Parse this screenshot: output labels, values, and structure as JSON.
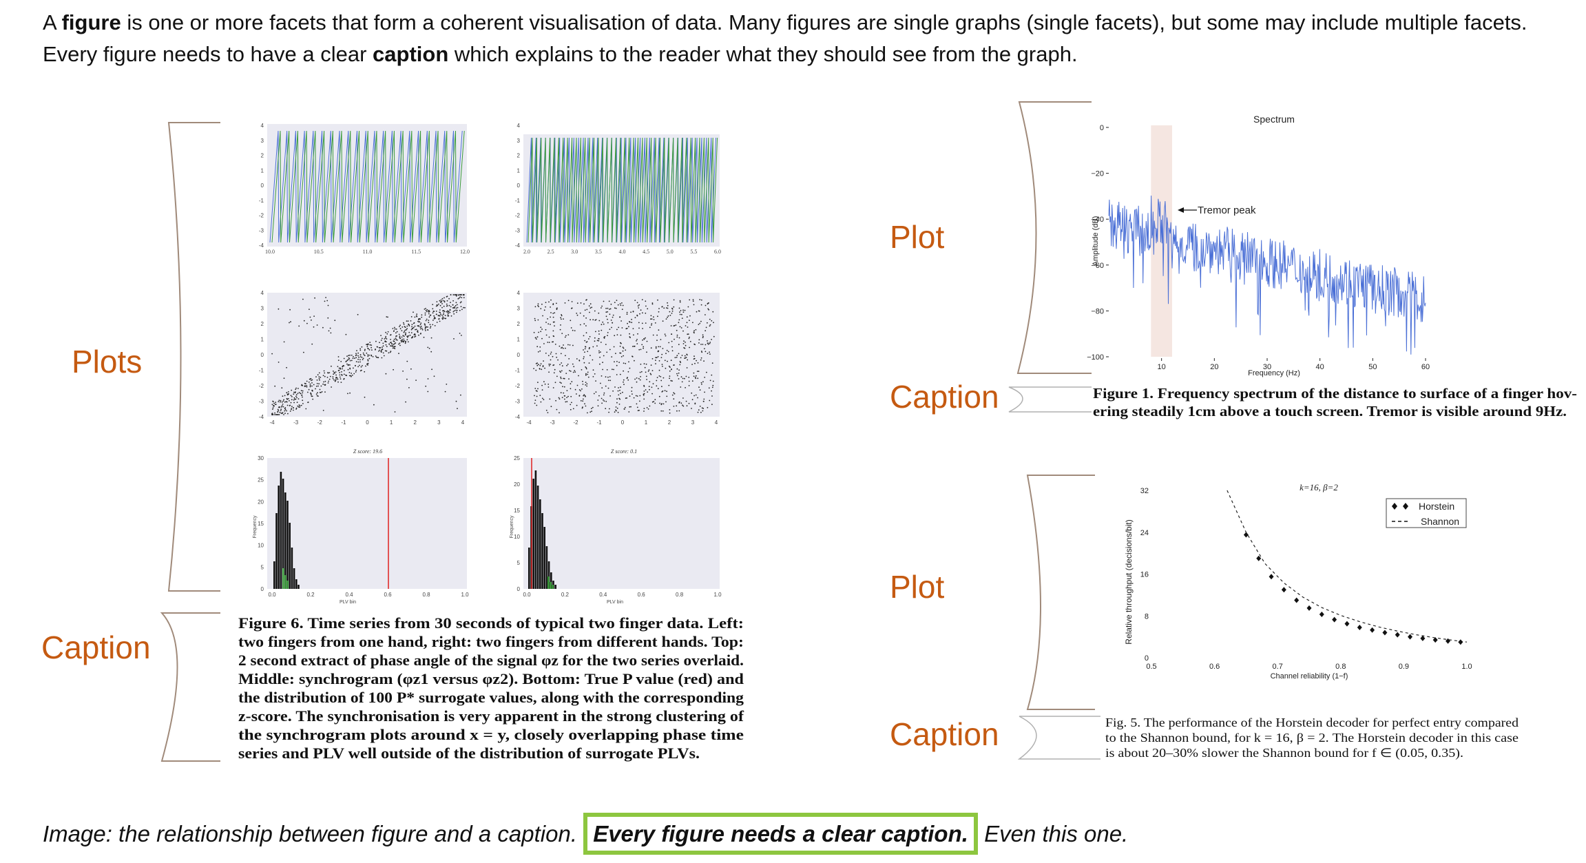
{
  "intro": {
    "part1": "A ",
    "figure_word": "figure",
    "part2": " is one or more facets that form a coherent visualisation of data. Many figures are single graphs (single facets), but some may include multiple facets. Every figure needs to have a clear ",
    "caption_word": "caption",
    "part3": " which explains to the reader what they should see from the graph."
  },
  "labels": {
    "plots": "Plots",
    "caption": "Caption",
    "plot": "Plot"
  },
  "left_figure": {
    "panels": {
      "top_left_ticks_x": [
        "10.0",
        "10.5",
        "11.0",
        "11.5",
        "12.0"
      ],
      "top_right_ticks_x": [
        "2.0",
        "2.5",
        "3.0",
        "3.5",
        "4.0",
        "4.5",
        "5.0",
        "5.5",
        "6.0"
      ],
      "y_ticks_time": [
        "4",
        "3",
        "2",
        "1",
        "0",
        "-1",
        "-2",
        "-3",
        "-4"
      ],
      "scatter_ticks_x": [
        "-4",
        "-3",
        "-2",
        "-1",
        "0",
        "1",
        "2",
        "3",
        "4"
      ],
      "hist_left_title": "Z score: 19.6",
      "hist_right_title": "Z score: 0.1",
      "hist_xlabel": "PLV bin",
      "hist_ylabel": "Frequency",
      "hist_ticks_x": [
        "0.0",
        "0.2",
        "0.4",
        "0.6",
        "0.8",
        "1.0"
      ],
      "hist_left_ticks_y": [
        "30",
        "25",
        "20",
        "15",
        "10",
        "5",
        "0"
      ],
      "hist_right_ticks_y": [
        "25",
        "20",
        "15",
        "10",
        "5",
        "0"
      ]
    },
    "caption_lines": [
      "Figure 6.  Time series from 30 seconds of typical two finger data.  Left:",
      "two fingers from one hand, right: two fingers from different hands.  Top:",
      "2 second extract of phase angle of the signal φz for the two series overlaid.",
      "Middle: synchrogram (φz1 versus φz2). Bottom: True P value (red) and",
      "the distribution of 100 P* surrogate values, along with the corresponding",
      "z-score. The synchronisation is very apparent in the strong clustering of",
      "the synchrogram plots around  x = y,  closely overlapping phase time",
      "series and PLV well outside of the distribution of surrogate PLVs."
    ]
  },
  "spectrum_figure": {
    "chart_data": {
      "type": "line",
      "title": "Spectrum",
      "xlabel": "Frequency (Hz)",
      "ylabel": "Amplitude (dB)",
      "x_ticks": [
        "10",
        "20",
        "30",
        "40",
        "50",
        "60"
      ],
      "y_ticks": [
        "0",
        "-20",
        "-40",
        "-60",
        "-80",
        "-100"
      ],
      "xlim": [
        0,
        60
      ],
      "ylim": [
        -100,
        0
      ],
      "annotation": "Tremor peak",
      "highlight_band_hz": [
        8,
        12
      ],
      "series_color": "#4a6fd6"
    },
    "caption_lines": [
      "Figure 1. Frequency spectrum of the distance to surface of a finger hov-",
      "ering steadily 1cm above a touch screen. Tremor is visible around 9Hz."
    ]
  },
  "throughput_figure": {
    "chart_data": {
      "type": "scatter",
      "title": "k=16, β=2",
      "xlabel": "Channel reliability (1−f)",
      "ylabel": "Relative throughput (decisions/bit)",
      "x_ticks": [
        "0.5",
        "0.6",
        "0.7",
        "0.8",
        "0.9",
        "1.0"
      ],
      "y_ticks": [
        "32",
        "24",
        "16",
        "8",
        "0"
      ],
      "xlim": [
        0.5,
        1.0
      ],
      "ylim": [
        0,
        32
      ],
      "series": [
        {
          "name": "Horstein",
          "marker": "diamond",
          "x": [
            0.65,
            0.67,
            0.69,
            0.71,
            0.73,
            0.75,
            0.77,
            0.79,
            0.81,
            0.83,
            0.85,
            0.87,
            0.89,
            0.91,
            0.93,
            0.95,
            0.97,
            0.99
          ],
          "y": [
            23.5,
            19,
            15.5,
            13,
            11,
            9.5,
            8.3,
            7.3,
            6.5,
            5.8,
            5.3,
            4.8,
            4.4,
            4.0,
            3.7,
            3.4,
            3.2,
            3.0
          ]
        },
        {
          "name": "Shannon",
          "style": "dashed",
          "x": [
            0.62,
            0.65,
            0.68,
            0.71,
            0.74,
            0.77,
            0.8,
            0.83,
            0.86,
            0.89,
            0.92,
            0.95,
            0.98,
            1.0
          ],
          "y": [
            32,
            24,
            18,
            14.3,
            11.6,
            9.6,
            8.1,
            6.9,
            5.9,
            5.1,
            4.4,
            3.8,
            3.3,
            3.0
          ]
        }
      ]
    },
    "caption_lines": [
      "Fig. 5.   The performance of the Horstein decoder for perfect entry compared",
      "to the Shannon bound, for k = 16, β = 2. The Horstein decoder in this case",
      "is about 20–30% slower the Shannon bound for f ∈ (0.05, 0.35)."
    ]
  },
  "bottom": {
    "before": "Image: the relationship between figure and a caption. ",
    "highlight": "Every figure needs a clear caption.",
    "after": " Even this one."
  },
  "colors": {
    "label_orange": "#c55a11",
    "bracket": "#a08a7a",
    "highlight_border": "#8dc63f",
    "green_series": "#3a9a3a",
    "blue_series": "#4a6fd6",
    "true_p_red": "#e02020"
  }
}
